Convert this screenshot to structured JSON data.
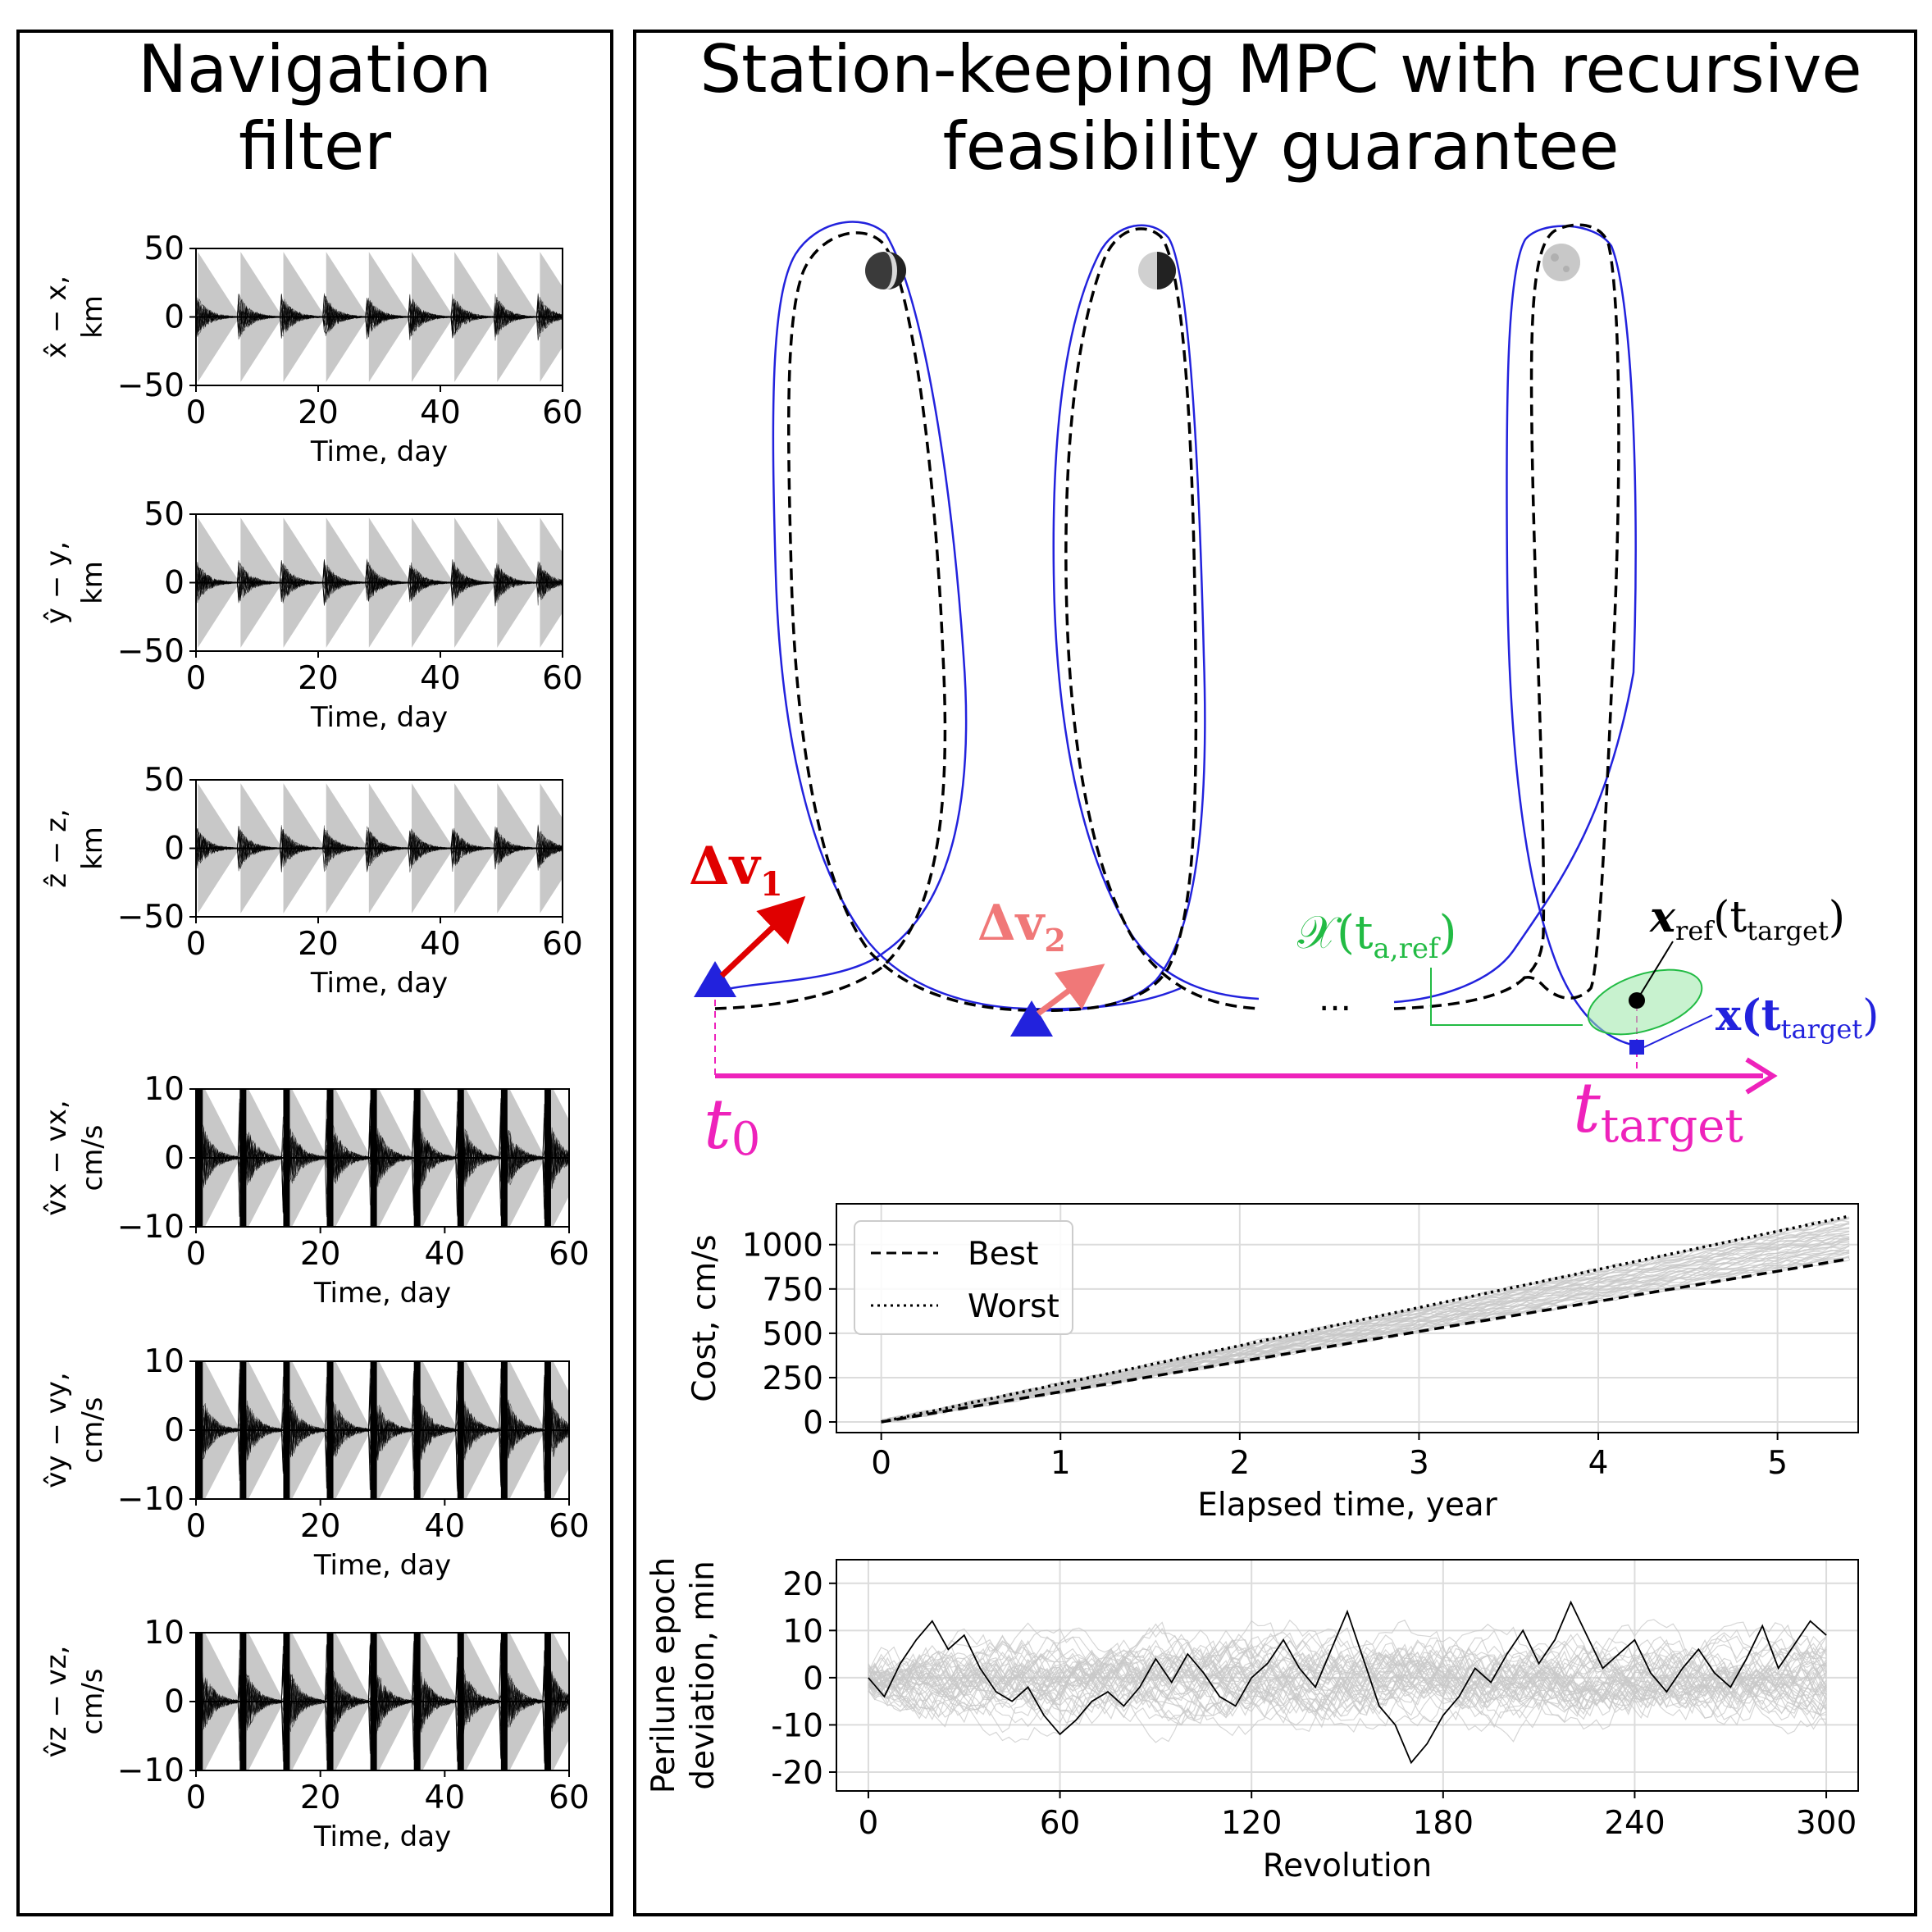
{
  "left_panel": {
    "title_line1": "Navigation",
    "title_line2": "filter",
    "plots": [
      {
        "ylabel_line1": "x̂ − x,",
        "ylabel_line2": "km",
        "yticks": [
          "50",
          "0",
          "−50"
        ],
        "xticks": [
          "0",
          "20",
          "40",
          "60"
        ],
        "xlabel": "Time, day"
      },
      {
        "ylabel_line1": "ŷ − y,",
        "ylabel_line2": "km",
        "yticks": [
          "50",
          "0",
          "−50"
        ],
        "xticks": [
          "0",
          "20",
          "40",
          "60"
        ],
        "xlabel": "Time, day"
      },
      {
        "ylabel_line1": "ẑ − z,",
        "ylabel_line2": "km",
        "yticks": [
          "50",
          "0",
          "−50"
        ],
        "xticks": [
          "0",
          "20",
          "40",
          "60"
        ],
        "xlabel": "Time, day"
      },
      {
        "ylabel_line1": "v̂x − vx,",
        "ylabel_line2": "cm/s",
        "yticks": [
          "10",
          "0",
          "−10"
        ],
        "xticks": [
          "0",
          "20",
          "40",
          "60"
        ],
        "xlabel": "Time, day"
      },
      {
        "ylabel_line1": "v̂y − vy,",
        "ylabel_line2": "cm/s",
        "yticks": [
          "10",
          "0",
          "−10"
        ],
        "xticks": [
          "0",
          "20",
          "40",
          "60"
        ],
        "xlabel": "Time, day"
      },
      {
        "ylabel_line1": "v̂z − vz,",
        "ylabel_line2": "cm/s",
        "yticks": [
          "10",
          "0",
          "−10"
        ],
        "xticks": [
          "0",
          "20",
          "40",
          "60"
        ],
        "xlabel": "Time, day"
      }
    ]
  },
  "right_panel": {
    "title_line1": "Station-keeping MPC with recursive",
    "title_line2": "feasibility guarantee",
    "diagram": {
      "dv1_label": "Δv",
      "dv1_sub": "1",
      "dv2_label": "Δv",
      "dv2_sub": "2",
      "ellipsis": "...",
      "set_label": "𝒳(t",
      "set_sub": "a,ref",
      "set_close": ")",
      "xref_label": "x",
      "xref_sub": "ref",
      "xref_arg": "(t",
      "xref_arg_sub": "target",
      "xref_close": ")",
      "x_label": "x(t",
      "x_sub": "target",
      "x_close": ")",
      "t0_label": "t",
      "t0_sub": "0",
      "ttarget_label": "t",
      "ttarget_sub": "target",
      "colors": {
        "reference": "#000000",
        "actual": "#2222dd",
        "dv1": "#e00000",
        "dv2": "#f07878",
        "set": "#22bb44",
        "timeline": "#ee22bb"
      }
    }
  },
  "chart_data": [
    {
      "type": "line",
      "xlabel": "Elapsed time, year",
      "ylabel": "Cost, cm/s",
      "xlim": [
        -0.25,
        5.45
      ],
      "ylim": [
        -60,
        1230
      ],
      "xticks": [
        0,
        1,
        2,
        3,
        4,
        5
      ],
      "yticks": [
        0,
        250,
        500,
        750,
        1000
      ],
      "grid": true,
      "legend_position": "top-left",
      "series": [
        {
          "name": "Best",
          "style": "dashed",
          "x": [
            0,
            1,
            2,
            3,
            4,
            5,
            5.4
          ],
          "y": [
            0,
            170,
            340,
            510,
            680,
            850,
            920
          ]
        },
        {
          "name": "Worst",
          "style": "dotted",
          "x": [
            0,
            1,
            2,
            3,
            4,
            5,
            5.4
          ],
          "y": [
            0,
            215,
            430,
            645,
            860,
            1075,
            1160
          ]
        }
      ],
      "background_band": {
        "color": "#c8c8c8",
        "x": [
          0,
          5.4
        ],
        "low": [
          0,
          920
        ],
        "high": [
          0,
          1160
        ]
      }
    },
    {
      "type": "line",
      "xlabel": "Revolution",
      "ylabel_line1": "Perilune epoch",
      "ylabel_line2": "deviation, min",
      "xlim": [
        -10,
        310
      ],
      "ylim": [
        -24,
        25
      ],
      "xticks": [
        0,
        60,
        120,
        180,
        240,
        300
      ],
      "yticks": [
        20,
        10,
        0,
        -10,
        -20
      ],
      "grid": true,
      "highlight_series": {
        "x": [
          0,
          5,
          10,
          15,
          20,
          25,
          30,
          35,
          40,
          45,
          50,
          55,
          60,
          65,
          70,
          75,
          80,
          85,
          90,
          95,
          100,
          105,
          110,
          115,
          120,
          125,
          130,
          135,
          140,
          145,
          150,
          155,
          160,
          165,
          170,
          175,
          180,
          185,
          190,
          195,
          200,
          205,
          210,
          215,
          220,
          225,
          230,
          235,
          240,
          245,
          250,
          255,
          260,
          265,
          270,
          275,
          280,
          285,
          290,
          295,
          300
        ],
        "y": [
          0,
          -4,
          3,
          8,
          12,
          6,
          9,
          2,
          -3,
          -5,
          -2,
          -8,
          -12,
          -9,
          -5,
          -3,
          -6,
          -2,
          4,
          -1,
          5,
          1,
          -4,
          -6,
          0,
          3,
          8,
          2,
          -2,
          6,
          14,
          4,
          -6,
          -10,
          -18,
          -14,
          -8,
          -4,
          2,
          -1,
          5,
          10,
          3,
          8,
          16,
          9,
          2,
          5,
          8,
          1,
          -3,
          2,
          6,
          1,
          -2,
          4,
          11,
          2,
          7,
          12,
          9
        ]
      }
    }
  ]
}
